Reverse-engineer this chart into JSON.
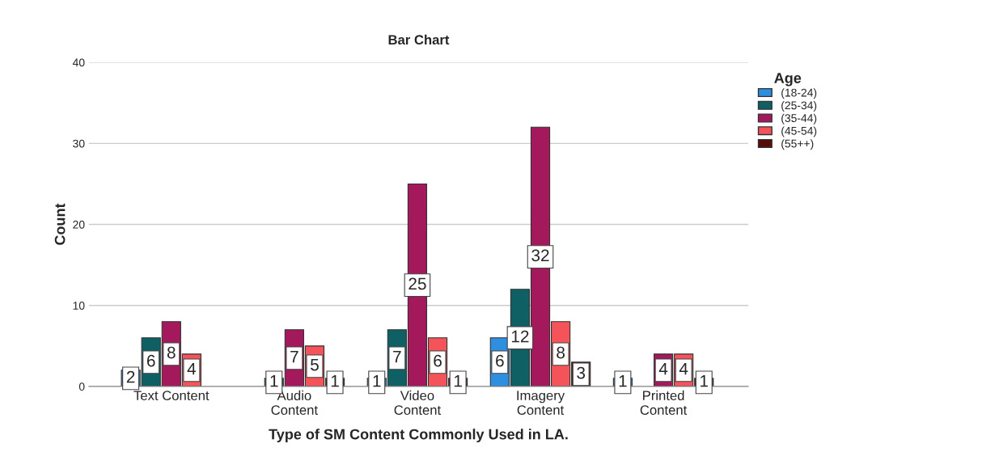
{
  "chart_data": {
    "type": "bar",
    "title": "Bar Chart",
    "xlabel": "Type of SM Content Commonly Used in LA.",
    "ylabel": "Count",
    "legend_title": "Age",
    "categories": [
      "Text Content",
      "Audio\nContent",
      "Video\nContent",
      "Imagery\nContent",
      "Printed\nContent"
    ],
    "series": [
      {
        "name": "(18-24)",
        "color": "#2e8fe0",
        "values": [
          2,
          null,
          1,
          6,
          1
        ]
      },
      {
        "name": "(25-34)",
        "color": "#0f6064",
        "values": [
          6,
          1,
          7,
          12,
          null
        ]
      },
      {
        "name": "(35-44)",
        "color": "#a3195b",
        "values": [
          8,
          7,
          25,
          32,
          4
        ]
      },
      {
        "name": "(45-54)",
        "color": "#f5535a",
        "values": [
          4,
          5,
          6,
          8,
          4
        ]
      },
      {
        "name": "(55++)",
        "color": "#5b0a0a",
        "values": [
          null,
          1,
          1,
          3,
          1
        ]
      }
    ],
    "ylim": [
      0,
      40
    ],
    "yticks": [
      0,
      10,
      20,
      30,
      40
    ],
    "grid": "y",
    "legend": "top right",
    "data_labels": true
  }
}
